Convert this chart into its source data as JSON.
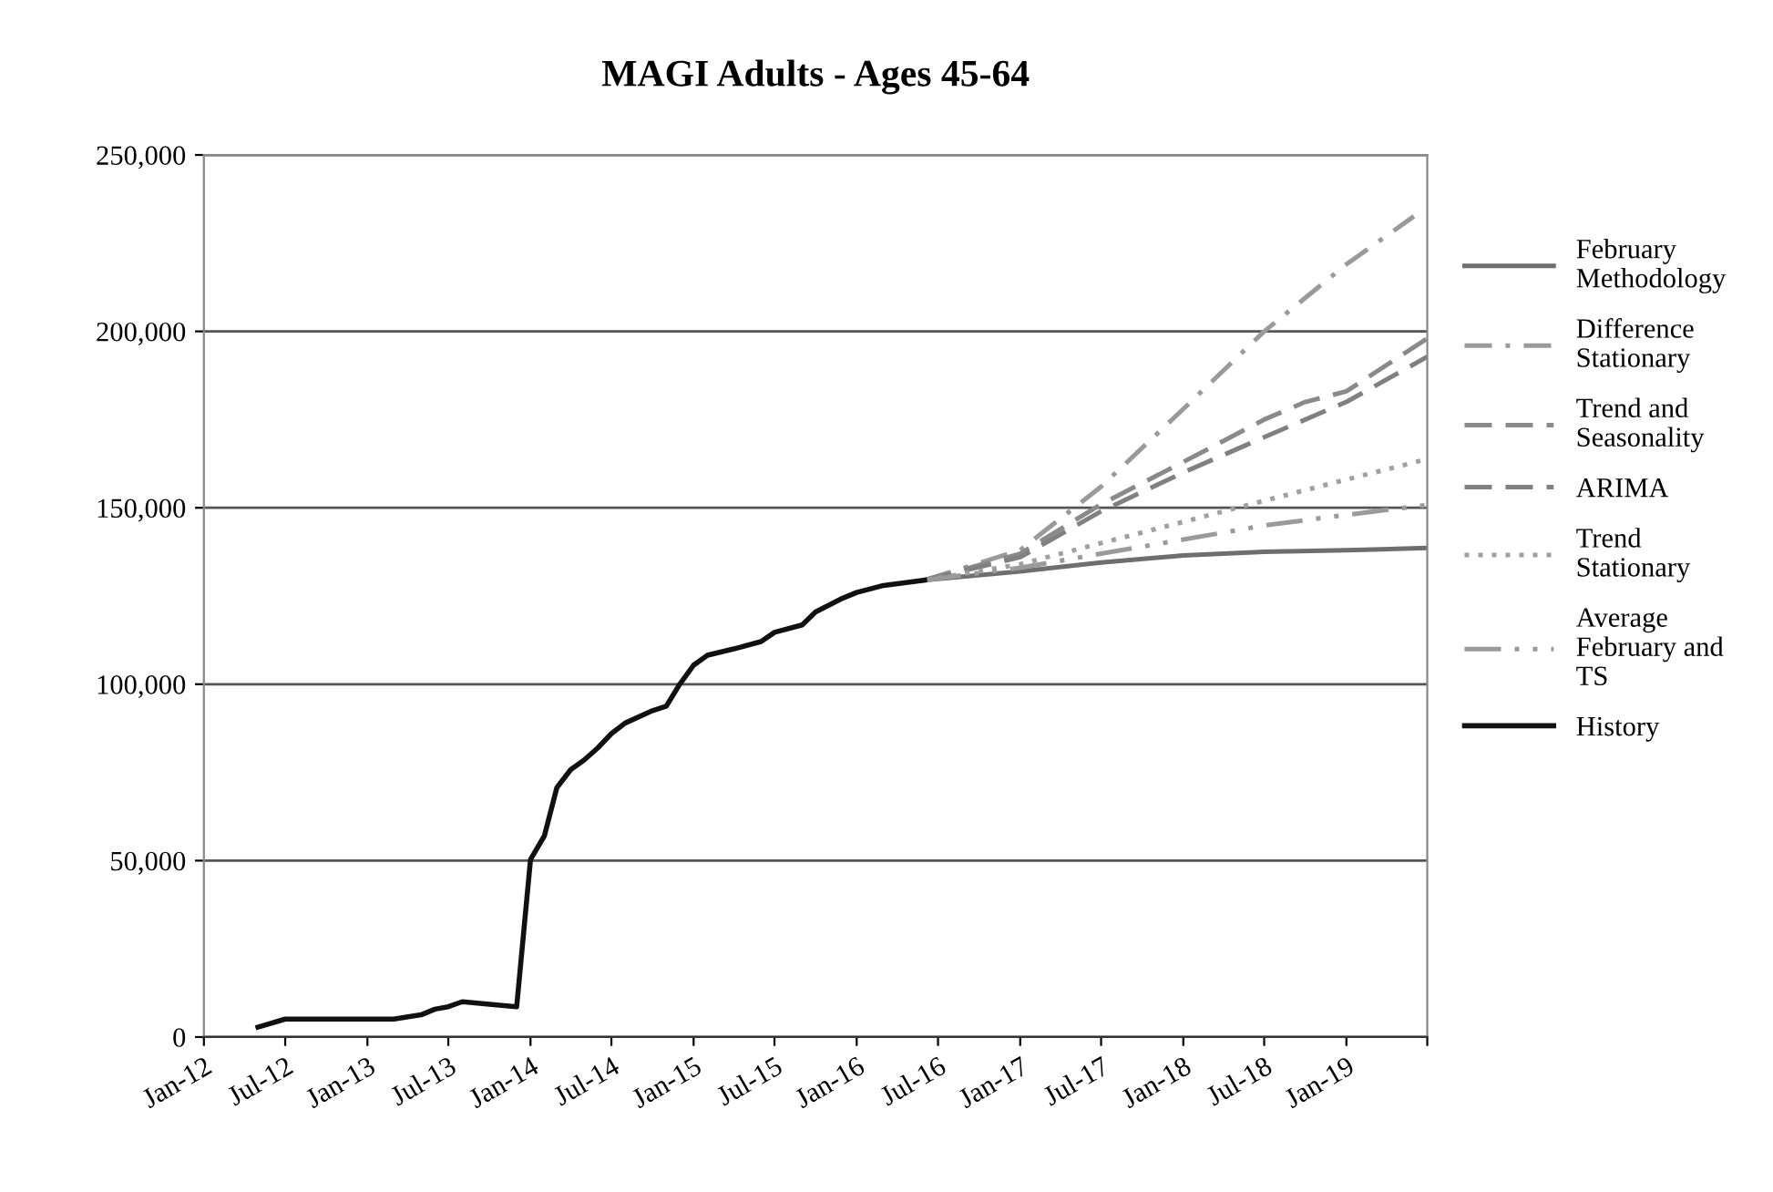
{
  "chart_data": {
    "type": "line",
    "title": "MAGI Adults - Ages 45-64",
    "xlim": [
      "2012-01",
      "2019-07"
    ],
    "xticks": [
      {
        "value": "2012-01",
        "label": "Jan-12"
      },
      {
        "value": "2012-07",
        "label": "Jul-12"
      },
      {
        "value": "2013-01",
        "label": "Jan-13"
      },
      {
        "value": "2013-07",
        "label": "Jul-13"
      },
      {
        "value": "2014-01",
        "label": "Jan-14"
      },
      {
        "value": "2014-07",
        "label": "Jul-14"
      },
      {
        "value": "2015-01",
        "label": "Jan-15"
      },
      {
        "value": "2015-07",
        "label": "Jul-15"
      },
      {
        "value": "2016-01",
        "label": "Jan-16"
      },
      {
        "value": "2016-07",
        "label": "Jul-16"
      },
      {
        "value": "2017-01",
        "label": "Jan-17"
      },
      {
        "value": "2017-07",
        "label": "Jul-17"
      },
      {
        "value": "2018-01",
        "label": "Jan-18"
      },
      {
        "value": "2018-07",
        "label": "Jul-18"
      },
      {
        "value": "2019-01",
        "label": "Jan-19"
      },
      {
        "value": "2019-07",
        "label": null
      }
    ],
    "ylim": [
      0,
      250000
    ],
    "yticks": [
      {
        "value": 0,
        "label": "0"
      },
      {
        "value": 50000,
        "label": "50,000"
      },
      {
        "value": 100000,
        "label": "100,000"
      },
      {
        "value": 150000,
        "label": "150,000"
      },
      {
        "value": 200000,
        "label": "200,000"
      },
      {
        "value": 250000,
        "label": "250,000"
      }
    ],
    "grid": "y",
    "legend": "right",
    "marker": "none",
    "series": [
      {
        "name": "February Methodology",
        "color": "#6e6e6e",
        "line_style": "solid",
        "x": [
          "2016-06",
          "2017-01",
          "2017-07",
          "2018-01",
          "2018-07",
          "2019-01",
          "2019-07"
        ],
        "values": [
          129500,
          132000,
          134500,
          136500,
          137500,
          138000,
          138600
        ]
      },
      {
        "name": "Difference Stationary",
        "color": "#9a9a9a",
        "line_style": "dashdot",
        "x": [
          "2016-06",
          "2017-01",
          "2017-07",
          "2018-01",
          "2018-07",
          "2019-01",
          "2019-06"
        ],
        "values": [
          129500,
          138000,
          156000,
          178000,
          200000,
          219000,
          232600
        ]
      },
      {
        "name": "Trend and Seasonality",
        "color": "#8a8a8a",
        "line_style": "dashed",
        "x": [
          "2016-06",
          "2017-01",
          "2017-07",
          "2018-01",
          "2018-07",
          "2018-10",
          "2019-01",
          "2019-07"
        ],
        "values": [
          129500,
          137000,
          151000,
          163000,
          175000,
          180000,
          183000,
          198000
        ]
      },
      {
        "name": "ARIMA",
        "color": "#808080",
        "line_style": "dashed",
        "x": [
          "2016-06",
          "2017-01",
          "2017-07",
          "2018-01",
          "2018-07",
          "2019-01",
          "2019-07"
        ],
        "values": [
          129500,
          136000,
          149000,
          160000,
          170000,
          180000,
          192800
        ]
      },
      {
        "name": "Trend Stationary",
        "color": "#a0a0a0",
        "line_style": "dotted",
        "x": [
          "2016-06",
          "2017-01",
          "2017-07",
          "2018-01",
          "2018-07",
          "2019-01",
          "2019-07"
        ],
        "values": [
          129500,
          134000,
          140000,
          146000,
          152000,
          158000,
          163800
        ]
      },
      {
        "name": "Average February and TS",
        "color": "#9a9a9a",
        "line_style": "dashdotdot",
        "x": [
          "2016-06",
          "2017-01",
          "2017-07",
          "2018-01",
          "2018-07",
          "2019-01",
          "2019-07"
        ],
        "values": [
          129500,
          133000,
          137000,
          141000,
          145000,
          148000,
          150800
        ]
      },
      {
        "name": "History",
        "color": "#111111",
        "line_style": "solid",
        "x": [
          "2012-05",
          "2012-07",
          "2013-03",
          "2013-05",
          "2013-06",
          "2013-07",
          "2013-08",
          "2013-10",
          "2013-12",
          "2014-01",
          "2014-02",
          "2014-03",
          "2014-04",
          "2014-05",
          "2014-06",
          "2014-07",
          "2014-08",
          "2014-10",
          "2014-11",
          "2014-12",
          "2015-01",
          "2015-02",
          "2015-04",
          "2015-06",
          "2015-07",
          "2015-09",
          "2015-10",
          "2015-12",
          "2016-01",
          "2016-03",
          "2016-06"
        ],
        "values": [
          2800,
          5100,
          5100,
          6300,
          7900,
          8600,
          10000,
          9300,
          8600,
          50300,
          57000,
          70700,
          75800,
          78500,
          82000,
          86000,
          89000,
          92500,
          93800,
          100000,
          105400,
          108200,
          110000,
          112100,
          114700,
          116800,
          120500,
          124400,
          126000,
          128000,
          129500
        ]
      }
    ]
  }
}
